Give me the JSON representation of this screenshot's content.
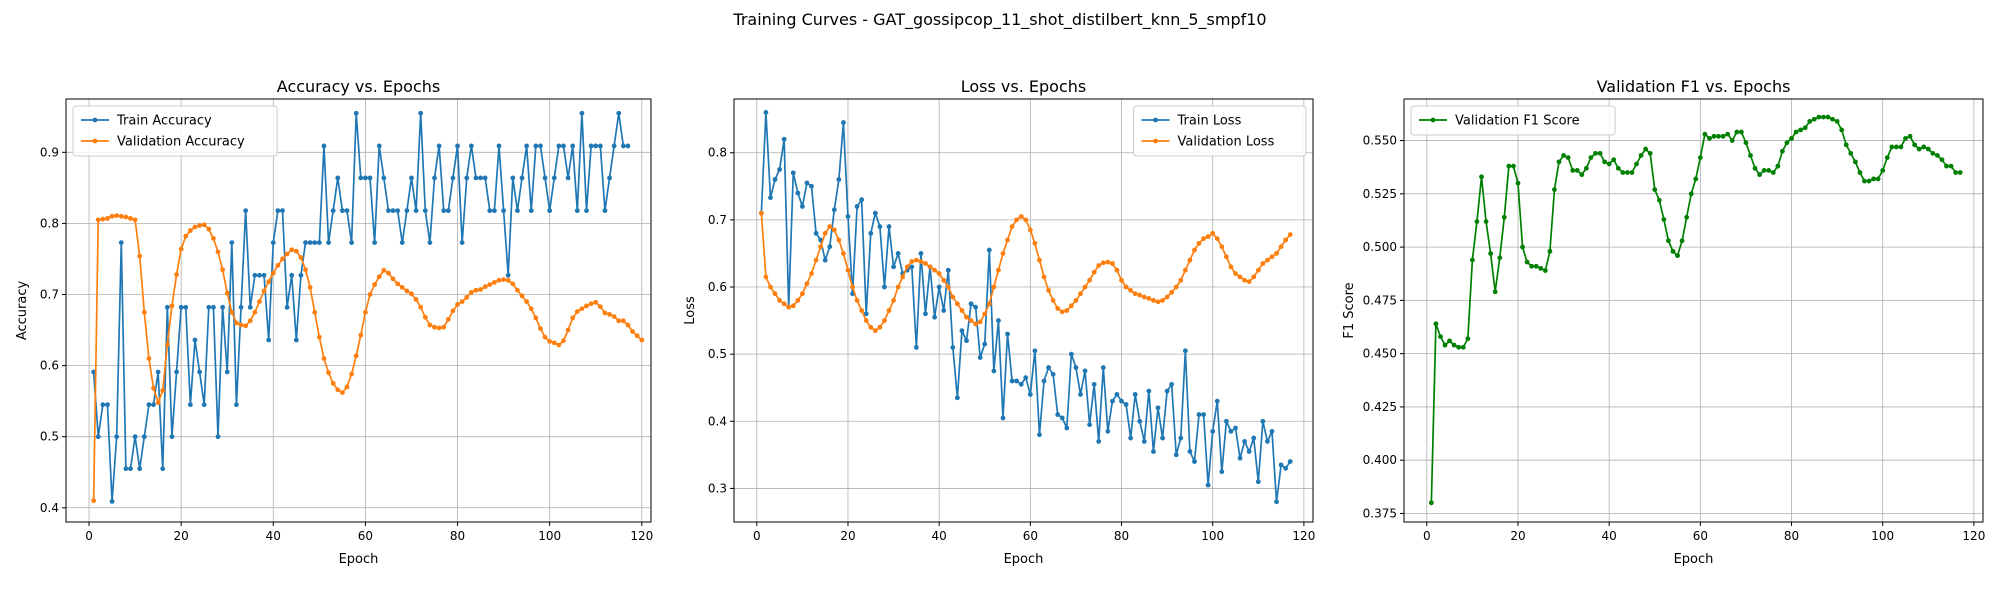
{
  "figure": {
    "suptitle": "Training Curves - GAT_gossipcop_11_shot_distilbert_knn_5_smpf10"
  },
  "chart_data": [
    {
      "type": "line",
      "title": "Accuracy vs. Epochs",
      "xlabel": "Epoch",
      "ylabel": "Accuracy",
      "xlim": [
        -5,
        122
      ],
      "ylim": [
        0.38,
        0.975
      ],
      "xticks": [
        0,
        20,
        40,
        60,
        80,
        100,
        120
      ],
      "yticks": [
        0.4,
        0.5,
        0.6,
        0.7,
        0.8,
        0.9
      ],
      "ytick_labels": [
        "0.4",
        "0.5",
        "0.6",
        "0.7",
        "0.8",
        "0.9"
      ],
      "grid": true,
      "legend_position": "upper left",
      "series": [
        {
          "name": "Train Accuracy",
          "color": "#1f77b4",
          "values": [
            0.591,
            0.5,
            0.545,
            0.545,
            0.409,
            0.5,
            0.773,
            0.455,
            0.455,
            0.5,
            0.455,
            0.5,
            0.545,
            0.545,
            0.591,
            0.455,
            0.682,
            0.5,
            0.591,
            0.682,
            0.682,
            0.545,
            0.636,
            0.591,
            0.545,
            0.682,
            0.682,
            0.5,
            0.682,
            0.591,
            0.773,
            0.545,
            0.682,
            0.818,
            0.682,
            0.727,
            0.727,
            0.727,
            0.636,
            0.773,
            0.818,
            0.818,
            0.682,
            0.727,
            0.636,
            0.727,
            0.773,
            0.773,
            0.773,
            0.773,
            0.909,
            0.773,
            0.818,
            0.864,
            0.818,
            0.818,
            0.773,
            0.955,
            0.864,
            0.864,
            0.864,
            0.773,
            0.909,
            0.864,
            0.818,
            0.818,
            0.818,
            0.773,
            0.818,
            0.864,
            0.818,
            0.955,
            0.818,
            0.773,
            0.864,
            0.909,
            0.818,
            0.818,
            0.864,
            0.909,
            0.773,
            0.864,
            0.909,
            0.864,
            0.864,
            0.864,
            0.818,
            0.818,
            0.909,
            0.818,
            0.727,
            0.864,
            0.818,
            0.864,
            0.909,
            0.818,
            0.909,
            0.909,
            0.864,
            0.818,
            0.864,
            0.909,
            0.909,
            0.864,
            0.909,
            0.818,
            0.955,
            0.818,
            0.909,
            0.909,
            0.909,
            0.818,
            0.864,
            0.909,
            0.955,
            0.909,
            0.909
          ]
        },
        {
          "name": "Validation Accuracy",
          "color": "#ff7f0e",
          "values": [
            0.41,
            0.805,
            0.806,
            0.807,
            0.81,
            0.811,
            0.81,
            0.809,
            0.807,
            0.805,
            0.754,
            0.675,
            0.61,
            0.568,
            0.548,
            0.565,
            0.63,
            0.684,
            0.728,
            0.764,
            0.782,
            0.79,
            0.795,
            0.797,
            0.798,
            0.792,
            0.779,
            0.76,
            0.735,
            0.702,
            0.675,
            0.66,
            0.657,
            0.656,
            0.663,
            0.675,
            0.69,
            0.705,
            0.718,
            0.73,
            0.741,
            0.75,
            0.757,
            0.763,
            0.761,
            0.752,
            0.735,
            0.71,
            0.675,
            0.64,
            0.61,
            0.59,
            0.575,
            0.566,
            0.562,
            0.57,
            0.588,
            0.614,
            0.643,
            0.675,
            0.7,
            0.714,
            0.725,
            0.734,
            0.73,
            0.722,
            0.715,
            0.71,
            0.705,
            0.701,
            0.693,
            0.682,
            0.668,
            0.657,
            0.654,
            0.653,
            0.654,
            0.665,
            0.677,
            0.686,
            0.69,
            0.696,
            0.703,
            0.706,
            0.707,
            0.711,
            0.714,
            0.717,
            0.72,
            0.721,
            0.72,
            0.715,
            0.706,
            0.698,
            0.69,
            0.68,
            0.667,
            0.652,
            0.64,
            0.634,
            0.632,
            0.629,
            0.635,
            0.65,
            0.667,
            0.676,
            0.68,
            0.684,
            0.687,
            0.689,
            0.683,
            0.674,
            0.672,
            0.669,
            0.663,
            0.663,
            0.657,
            0.648,
            0.642,
            0.636
          ]
        }
      ]
    },
    {
      "type": "line",
      "title": "Loss vs. Epochs",
      "xlabel": "Epoch",
      "ylabel": "Loss",
      "xlim": [
        -5,
        122
      ],
      "ylim": [
        0.25,
        0.88
      ],
      "xticks": [
        0,
        20,
        40,
        60,
        80,
        100,
        120
      ],
      "yticks": [
        0.3,
        0.4,
        0.5,
        0.6,
        0.7,
        0.8
      ],
      "ytick_labels": [
        "0.3",
        "0.4",
        "0.5",
        "0.6",
        "0.7",
        "0.8"
      ],
      "grid": true,
      "legend_position": "upper right",
      "series": [
        {
          "name": "Train Loss",
          "color": "#1f77b4",
          "values": [
            0.71,
            0.86,
            0.733,
            0.76,
            0.775,
            0.82,
            0.57,
            0.77,
            0.74,
            0.72,
            0.755,
            0.75,
            0.68,
            0.67,
            0.64,
            0.66,
            0.715,
            0.76,
            0.845,
            0.705,
            0.59,
            0.72,
            0.73,
            0.56,
            0.68,
            0.71,
            0.69,
            0.6,
            0.69,
            0.63,
            0.65,
            0.62,
            0.625,
            0.63,
            0.51,
            0.65,
            0.56,
            0.63,
            0.555,
            0.6,
            0.565,
            0.625,
            0.51,
            0.435,
            0.535,
            0.52,
            0.575,
            0.57,
            0.495,
            0.515,
            0.655,
            0.475,
            0.55,
            0.405,
            0.53,
            0.46,
            0.46,
            0.455,
            0.465,
            0.44,
            0.505,
            0.38,
            0.46,
            0.48,
            0.47,
            0.41,
            0.405,
            0.39,
            0.5,
            0.48,
            0.44,
            0.475,
            0.395,
            0.455,
            0.37,
            0.48,
            0.385,
            0.43,
            0.44,
            0.43,
            0.425,
            0.375,
            0.44,
            0.4,
            0.37,
            0.445,
            0.355,
            0.42,
            0.375,
            0.445,
            0.455,
            0.35,
            0.375,
            0.505,
            0.355,
            0.34,
            0.41,
            0.41,
            0.305,
            0.385,
            0.43,
            0.325,
            0.4,
            0.385,
            0.39,
            0.345,
            0.37,
            0.355,
            0.375,
            0.31,
            0.4,
            0.37,
            0.385,
            0.28,
            0.335,
            0.33,
            0.34
          ]
        },
        {
          "name": "Validation Loss",
          "color": "#ff7f0e",
          "values": [
            0.71,
            0.615,
            0.6,
            0.59,
            0.58,
            0.575,
            0.57,
            0.572,
            0.58,
            0.59,
            0.605,
            0.62,
            0.64,
            0.66,
            0.68,
            0.69,
            0.685,
            0.67,
            0.65,
            0.625,
            0.6,
            0.58,
            0.565,
            0.55,
            0.54,
            0.535,
            0.54,
            0.55,
            0.565,
            0.58,
            0.6,
            0.615,
            0.63,
            0.638,
            0.64,
            0.638,
            0.635,
            0.63,
            0.625,
            0.62,
            0.61,
            0.6,
            0.585,
            0.575,
            0.565,
            0.555,
            0.55,
            0.545,
            0.548,
            0.56,
            0.575,
            0.6,
            0.625,
            0.65,
            0.67,
            0.69,
            0.7,
            0.705,
            0.7,
            0.685,
            0.665,
            0.64,
            0.615,
            0.595,
            0.58,
            0.568,
            0.563,
            0.565,
            0.572,
            0.58,
            0.59,
            0.6,
            0.61,
            0.622,
            0.632,
            0.636,
            0.637,
            0.635,
            0.625,
            0.61,
            0.6,
            0.595,
            0.59,
            0.588,
            0.585,
            0.583,
            0.58,
            0.578,
            0.58,
            0.585,
            0.592,
            0.6,
            0.61,
            0.625,
            0.64,
            0.655,
            0.665,
            0.672,
            0.675,
            0.68,
            0.672,
            0.66,
            0.645,
            0.63,
            0.62,
            0.615,
            0.61,
            0.608,
            0.615,
            0.625,
            0.635,
            0.64,
            0.645,
            0.65,
            0.66,
            0.67,
            0.678
          ]
        }
      ]
    },
    {
      "type": "line",
      "title": "Validation F1 vs. Epochs",
      "xlabel": "Epoch",
      "ylabel": "F1 Score",
      "xlim": [
        -5,
        122
      ],
      "ylim": [
        0.371,
        0.5695
      ],
      "xticks": [
        0,
        20,
        40,
        60,
        80,
        100,
        120
      ],
      "yticks": [
        0.375,
        0.4,
        0.425,
        0.45,
        0.475,
        0.5,
        0.525,
        0.55
      ],
      "ytick_labels": [
        "0.375",
        "0.400",
        "0.425",
        "0.450",
        "0.475",
        "0.500",
        "0.525",
        "0.550"
      ],
      "grid": true,
      "legend_position": "upper left",
      "series": [
        {
          "name": "Validation F1 Score",
          "color": "#008000",
          "values": [
            0.38,
            0.464,
            0.458,
            0.454,
            0.456,
            0.454,
            0.453,
            0.453,
            0.457,
            0.494,
            0.512,
            0.533,
            0.512,
            0.497,
            0.479,
            0.495,
            0.514,
            0.538,
            0.538,
            0.53,
            0.5,
            0.493,
            0.491,
            0.491,
            0.49,
            0.489,
            0.498,
            0.527,
            0.54,
            0.543,
            0.542,
            0.536,
            0.536,
            0.534,
            0.537,
            0.542,
            0.544,
            0.544,
            0.54,
            0.539,
            0.541,
            0.537,
            0.535,
            0.535,
            0.535,
            0.539,
            0.543,
            0.546,
            0.544,
            0.527,
            0.522,
            0.513,
            0.503,
            0.498,
            0.496,
            0.503,
            0.514,
            0.525,
            0.532,
            0.542,
            0.553,
            0.551,
            0.552,
            0.552,
            0.552,
            0.553,
            0.55,
            0.554,
            0.554,
            0.549,
            0.543,
            0.537,
            0.534,
            0.536,
            0.536,
            0.535,
            0.538,
            0.545,
            0.549,
            0.551,
            0.554,
            0.555,
            0.556,
            0.559,
            0.56,
            0.561,
            0.561,
            0.561,
            0.56,
            0.559,
            0.555,
            0.548,
            0.544,
            0.54,
            0.535,
            0.531,
            0.531,
            0.532,
            0.532,
            0.536,
            0.542,
            0.547,
            0.547,
            0.547,
            0.551,
            0.552,
            0.548,
            0.546,
            0.547,
            0.546,
            0.544,
            0.543,
            0.541,
            0.538,
            0.538,
            0.535,
            0.535
          ]
        }
      ]
    }
  ]
}
